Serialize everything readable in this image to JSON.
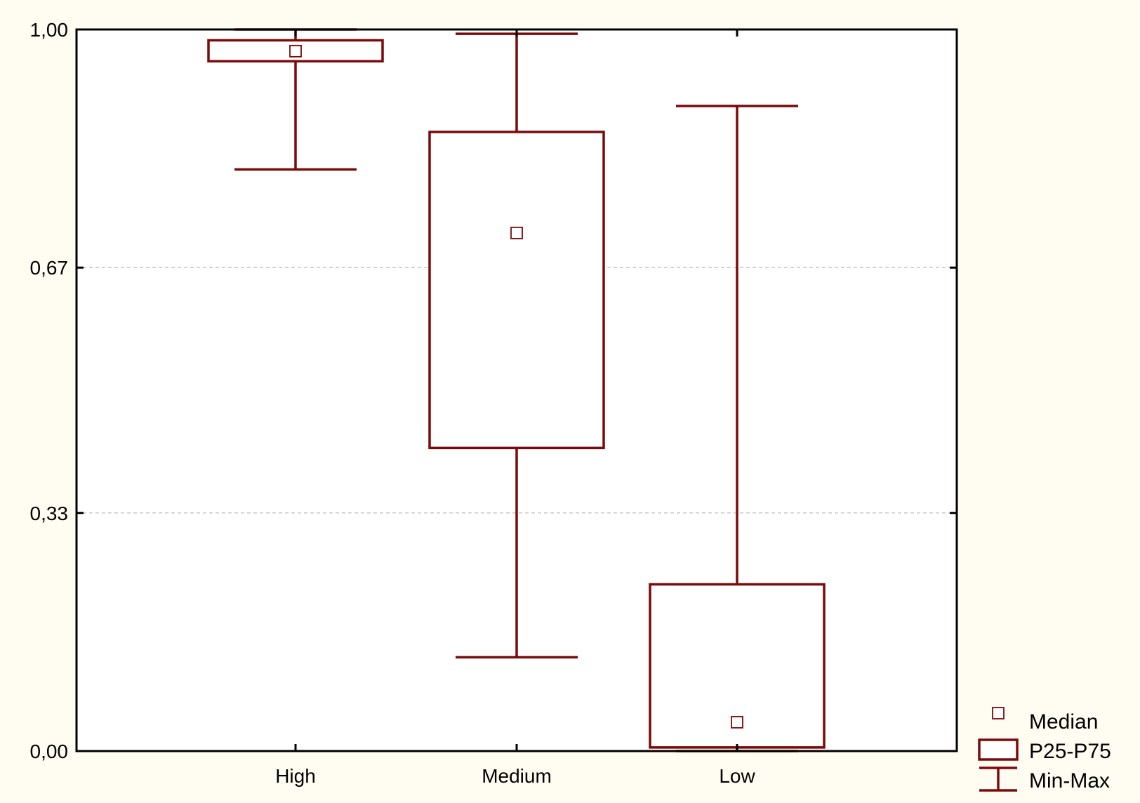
{
  "chart_data": {
    "type": "box",
    "categories": [
      "High",
      "Medium",
      "Low"
    ],
    "y_ticks": [
      {
        "value": 0.0,
        "label": "0,00"
      },
      {
        "value": 0.33,
        "label": "0,33"
      },
      {
        "value": 0.67,
        "label": "0,67"
      },
      {
        "value": 1.0,
        "label": "1,00"
      }
    ],
    "ylim": [
      0,
      1
    ],
    "grid": "horizontal-dashed",
    "boxes": [
      {
        "category": "High",
        "min": 0.806,
        "p25": 0.956,
        "median": 0.97,
        "p75": 0.985,
        "max": 1.0
      },
      {
        "category": "Medium",
        "min": 0.13,
        "p25": 0.42,
        "median": 0.718,
        "p75": 0.858,
        "max": 0.994
      },
      {
        "category": "Low",
        "min": 0.0,
        "p25": 0.005,
        "median": 0.04,
        "p75": 0.231,
        "max": 0.894
      }
    ],
    "legend": {
      "position": "right-bottom",
      "items": [
        {
          "key": "median",
          "label": "Median"
        },
        {
          "key": "box",
          "label": "P25-P75"
        },
        {
          "key": "whisker",
          "label": "Min-Max"
        }
      ]
    },
    "colors": {
      "series": "#7b0a0a",
      "frame": "#000000",
      "grid": "#bbbbbb",
      "background": "#fffdf2",
      "plot_background": "#ffffff"
    }
  }
}
